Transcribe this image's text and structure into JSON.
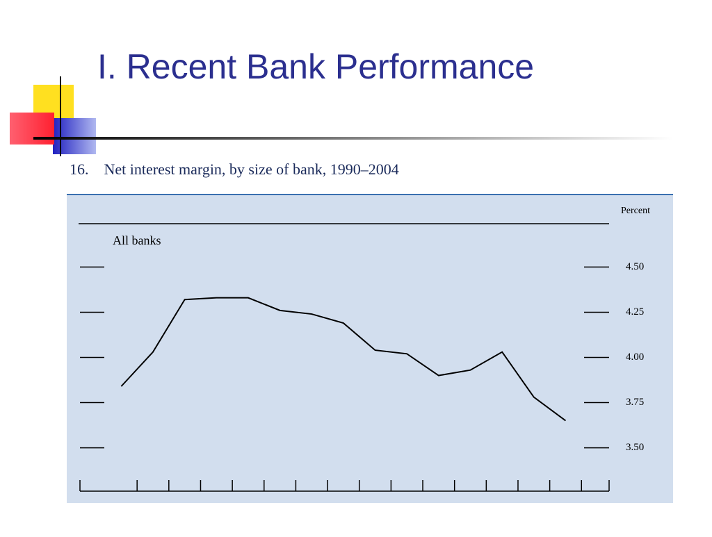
{
  "slide_title": "I. Recent Bank Performance",
  "chart_data": {
    "type": "line",
    "title": "16.    Net interest margin, by size of bank, 1990–2004",
    "y_label": "Percent",
    "series": [
      {
        "name": "All banks",
        "color": "#000000",
        "values": [
          3.84,
          4.03,
          4.32,
          4.33,
          4.33,
          4.26,
          4.24,
          4.19,
          4.04,
          4.02,
          3.9,
          3.93,
          4.03,
          3.78,
          3.65
        ]
      }
    ],
    "ylim": [
      3.26,
      4.74
    ],
    "yticks": [
      {
        "value": 3.5,
        "label": "3.50"
      },
      3.75,
      {
        "value": 4,
        "label": "4.00"
      },
      4.25,
      {
        "value": 4.5,
        "label": "4.50"
      }
    ]
  }
}
